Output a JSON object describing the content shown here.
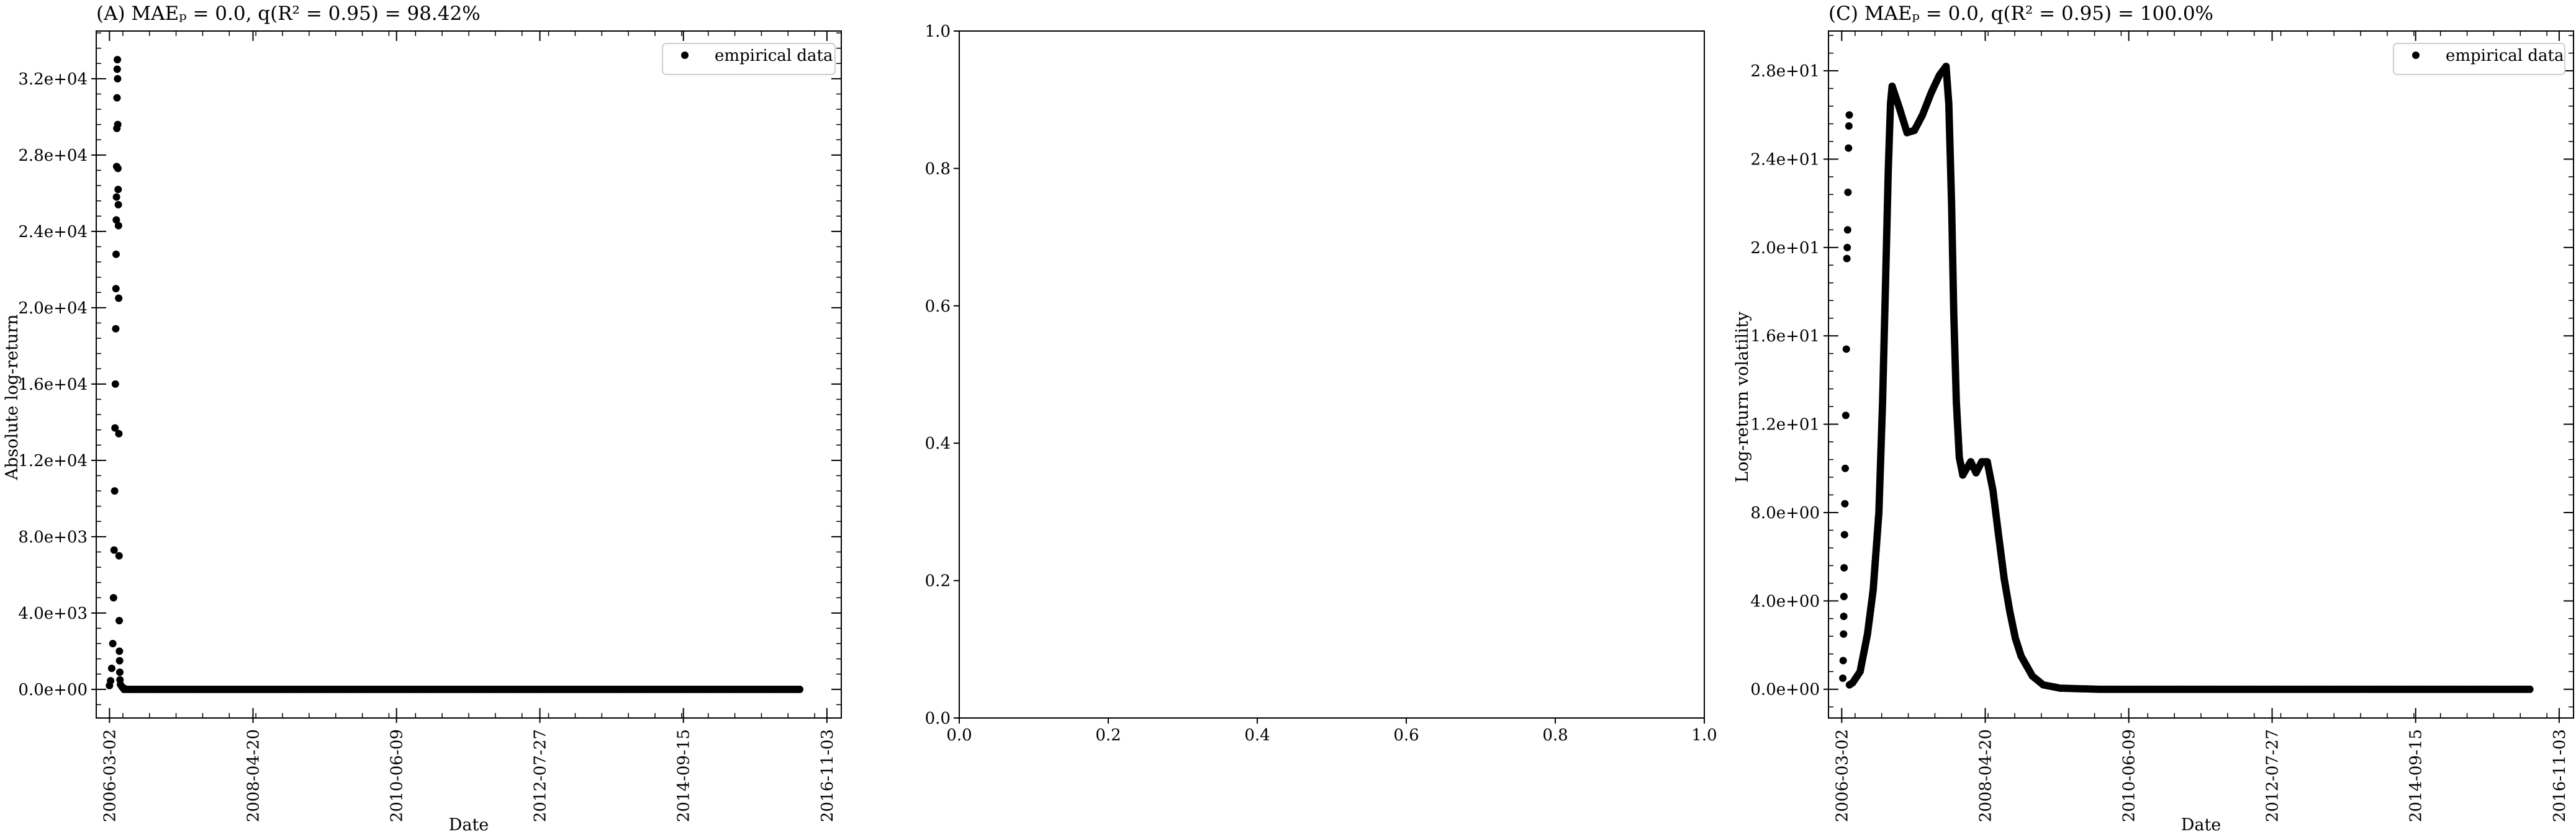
{
  "chart_data": [
    {
      "type": "scatter",
      "title": "(A) MAEₚ = 0.0, q(R² = 0.95) = 98.42%",
      "xlabel": "Date",
      "ylabel": "Absolute log-return",
      "x_tick_labels": [
        "2006-03-02",
        "2008-04-20",
        "2010-06-09",
        "2012-07-27",
        "2014-09-15",
        "2016-11-03"
      ],
      "y_tick_labels": [
        "0.0e+00",
        "4.0e+03",
        "8.0e+03",
        "1.2e+04",
        "1.6e+04",
        "2.0e+04",
        "2.4e+04",
        "2.8e+04",
        "3.2e+04"
      ],
      "ylim": [
        -1500,
        34500
      ],
      "xlim": [
        "2005-12-20",
        "2017-01-20"
      ],
      "legend": {
        "label": "empirical data",
        "position": "top-right"
      },
      "series": [
        {
          "name": "empirical data",
          "spike_x": [
            "2006-03-02",
            "2006-03-20",
            "2006-04-01",
            "2006-04-08",
            "2006-04-15",
            "2006-04-22"
          ],
          "points": [
            [
              "2006-03-02",
              200
            ],
            [
              "2006-03-08",
              450
            ],
            [
              "2006-03-14",
              1100
            ],
            [
              "2006-03-20",
              2400
            ],
            [
              "2006-03-24",
              4800
            ],
            [
              "2006-03-27",
              7300
            ],
            [
              "2006-03-30",
              10400
            ],
            [
              "2006-04-01",
              13700
            ],
            [
              "2006-04-03",
              16000
            ],
            [
              "2006-04-05",
              18900
            ],
            [
              "2006-04-06",
              21000
            ],
            [
              "2006-04-07",
              22800
            ],
            [
              "2006-04-08",
              24600
            ],
            [
              "2006-04-09",
              25800
            ],
            [
              "2006-04-10",
              27400
            ],
            [
              "2006-04-11",
              29400
            ],
            [
              "2006-04-12",
              31000
            ],
            [
              "2006-04-13",
              32500
            ],
            [
              "2006-04-14",
              33000
            ],
            [
              "2006-04-15",
              32000
            ],
            [
              "2006-04-16",
              29600
            ],
            [
              "2006-04-17",
              27300
            ],
            [
              "2006-04-18",
              26200
            ],
            [
              "2006-04-19",
              25400
            ],
            [
              "2006-04-20",
              24300
            ],
            [
              "2006-04-21",
              20500
            ],
            [
              "2006-04-22",
              13400
            ],
            [
              "2006-04-23",
              7000
            ],
            [
              "2006-04-24",
              3600
            ],
            [
              "2006-04-25",
              2000
            ],
            [
              "2006-04-26",
              1500
            ],
            [
              "2006-04-27",
              900
            ],
            [
              "2006-04-28",
              500
            ],
            [
              "2006-05-01",
              250
            ],
            [
              "2006-05-10",
              120
            ],
            [
              "2006-05-20",
              60
            ]
          ],
          "baseline": {
            "from": "2006-05-20",
            "to": "2016-06-10",
            "value": 0
          }
        }
      ]
    },
    {
      "type": "scatter",
      "title": "",
      "xlabel": "",
      "ylabel": "",
      "x_tick_labels": [
        "0.0",
        "0.2",
        "0.4",
        "0.6",
        "0.8",
        "1.0"
      ],
      "y_tick_labels": [
        "0.0",
        "0.2",
        "0.4",
        "0.6",
        "0.8",
        "1.0"
      ],
      "xlim": [
        0,
        1
      ],
      "ylim": [
        0,
        1
      ],
      "series": []
    },
    {
      "type": "scatter",
      "title": "(C) MAEₚ = 0.0, q(R² = 0.95) = 100.0%",
      "xlabel": "Date",
      "ylabel": "Log-return volatility",
      "x_tick_labels": [
        "2006-03-02",
        "2008-04-20",
        "2010-06-09",
        "2012-07-27",
        "2014-09-15",
        "2016-11-03"
      ],
      "y_tick_labels": [
        "0.0e+00",
        "4.0e+00",
        "8.0e+00",
        "1.2e+01",
        "1.6e+01",
        "2.0e+01",
        "2.4e+01",
        "2.8e+01"
      ],
      "ylim": [
        -1.3,
        29.8
      ],
      "xlim": [
        "2005-12-20",
        "2017-01-20"
      ],
      "legend": {
        "label": "empirical data",
        "position": "top-right"
      },
      "series": [
        {
          "name": "empirical data",
          "curve": [
            [
              "2006-03-08",
              0.5
            ],
            [
              "2006-03-10",
              1.3
            ],
            [
              "2006-03-12",
              2.5
            ],
            [
              "2006-03-13",
              3.3
            ],
            [
              "2006-03-14",
              4.2
            ],
            [
              "2006-03-15",
              5.5
            ],
            [
              "2006-03-17",
              7.0
            ],
            [
              "2006-03-19",
              8.4
            ],
            [
              "2006-03-21",
              10.0
            ],
            [
              "2006-03-24",
              12.4
            ],
            [
              "2006-03-27",
              15.4
            ],
            [
              "2006-03-30",
              19.5
            ],
            [
              "2006-04-01",
              20.0
            ],
            [
              "2006-04-03",
              20.8
            ],
            [
              "2006-04-05",
              22.5
            ],
            [
              "2006-04-08",
              24.5
            ],
            [
              "2006-04-10",
              25.5
            ],
            [
              "2006-04-12",
              26.0
            ],
            [
              "2006-04-13",
              0.2
            ],
            [
              "2006-05-01",
              0.3
            ],
            [
              "2006-06-10",
              0.8
            ],
            [
              "2006-07-20",
              2.5
            ],
            [
              "2006-08-20",
              4.5
            ],
            [
              "2006-09-20",
              8.0
            ],
            [
              "2006-10-10",
              13.0
            ],
            [
              "2006-10-25",
              18.0
            ],
            [
              "2006-11-10",
              23.5
            ],
            [
              "2006-11-22",
              26.5
            ],
            [
              "2006-12-01",
              27.3
            ],
            [
              "2007-01-10",
              26.3
            ],
            [
              "2007-02-20",
              25.2
            ],
            [
              "2007-04-01",
              25.3
            ],
            [
              "2007-05-15",
              26.0
            ],
            [
              "2007-07-01",
              27.0
            ],
            [
              "2007-08-15",
              27.8
            ],
            [
              "2007-09-20",
              28.2
            ],
            [
              "2007-10-05",
              26.5
            ],
            [
              "2007-10-20",
              22.0
            ],
            [
              "2007-11-01",
              17.0
            ],
            [
              "2007-11-15",
              13.0
            ],
            [
              "2007-12-01",
              10.5
            ],
            [
              "2007-12-20",
              9.7
            ],
            [
              "2008-01-10",
              10.0
            ],
            [
              "2008-02-01",
              10.3
            ],
            [
              "2008-03-01",
              9.8
            ],
            [
              "2008-04-01",
              10.3
            ],
            [
              "2008-05-01",
              10.3
            ],
            [
              "2008-06-01",
              9.0
            ],
            [
              "2008-07-01",
              7.0
            ],
            [
              "2008-08-01",
              5.0
            ],
            [
              "2008-09-01",
              3.5
            ],
            [
              "2008-10-01",
              2.3
            ],
            [
              "2008-11-01",
              1.5
            ],
            [
              "2009-01-01",
              0.6
            ],
            [
              "2009-03-01",
              0.2
            ],
            [
              "2009-06-01",
              0.05
            ],
            [
              "2010-01-01",
              0.0
            ],
            [
              "2016-06-10",
              0.0
            ]
          ]
        }
      ]
    }
  ]
}
